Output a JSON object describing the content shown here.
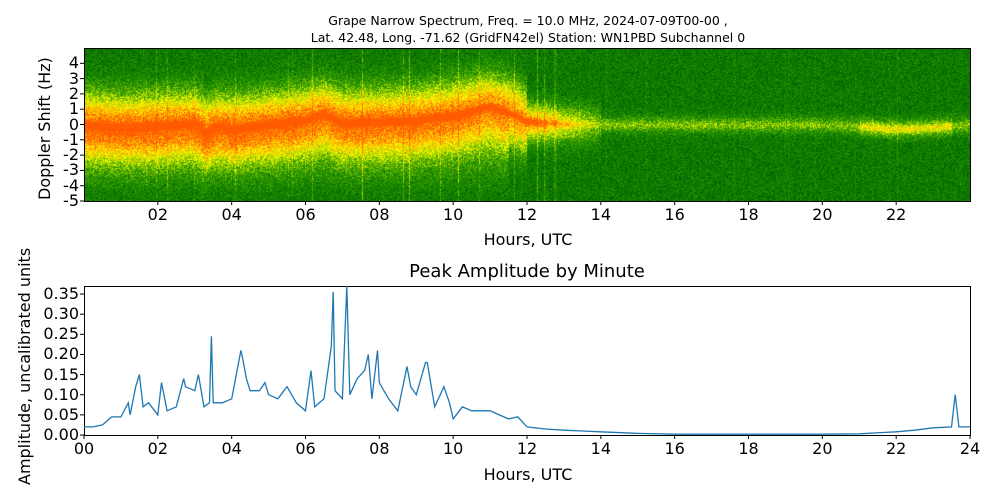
{
  "figure": {
    "title_line1": "Grape Narrow Spectrum, Freq. = 10.0 MHz, 2024-07-09T00-00 ,",
    "title_line2": "Lat.  42.48, Long. -71.62 (GridFN42el) Station: WN1PBD Subchannel 0"
  },
  "chart_data": [
    {
      "type": "heatmap",
      "title": "",
      "xlabel": "Hours, UTC",
      "ylabel": "Doppler Shift (Hz)",
      "xlim": [
        0,
        24
      ],
      "ylim": [
        -5,
        5
      ],
      "xticks": [
        "02",
        "04",
        "06",
        "08",
        "10",
        "12",
        "14",
        "16",
        "18",
        "20",
        "22"
      ],
      "xtick_values": [
        2,
        4,
        6,
        8,
        10,
        12,
        14,
        16,
        18,
        20,
        22
      ],
      "yticks": [
        "4",
        "3",
        "2",
        "1",
        "0",
        "-1",
        "-2",
        "-3",
        "-4",
        "-5"
      ],
      "ytick_values": [
        4,
        3,
        2,
        1,
        0,
        -1,
        -2,
        -3,
        -4,
        -5
      ],
      "colormap": [
        "#006400",
        "#2a9a00",
        "#ffff00",
        "#ff5a00"
      ],
      "peak_doppler_trace": {
        "hours": [
          0,
          1,
          2,
          3,
          3.3,
          3.6,
          4,
          5,
          6,
          6.5,
          7,
          8,
          9,
          10,
          11,
          11.5,
          12,
          13,
          14,
          16,
          18,
          20,
          21,
          22,
          23,
          24
        ],
        "doppler_hz": [
          0,
          -0.2,
          -0.1,
          0.1,
          -0.6,
          -0.1,
          -0.3,
          0,
          0.3,
          0.7,
          0.1,
          0.2,
          0.3,
          0.6,
          1.2,
          0.8,
          0.2,
          0.05,
          0,
          0,
          0,
          0,
          -0.1,
          -0.3,
          -0.2,
          0
        ]
      },
      "grid": false
    },
    {
      "type": "line",
      "title": "Peak Amplitude by Minute",
      "xlabel": "Hours, UTC",
      "ylabel": "Amplitude, uncalibrated units",
      "xlim": [
        0,
        24
      ],
      "ylim": [
        0,
        0.37
      ],
      "xticks": [
        "00",
        "02",
        "04",
        "06",
        "08",
        "10",
        "12",
        "14",
        "16",
        "18",
        "20",
        "22",
        "24"
      ],
      "xtick_values": [
        0,
        2,
        4,
        6,
        8,
        10,
        12,
        14,
        16,
        18,
        20,
        22,
        24
      ],
      "yticks": [
        "0.00",
        "0.05",
        "0.10",
        "0.15",
        "0.20",
        "0.25",
        "0.30",
        "0.35"
      ],
      "ytick_values": [
        0,
        0.05,
        0.1,
        0.15,
        0.2,
        0.25,
        0.3,
        0.35
      ],
      "line_color": "#1f77b4",
      "grid": false,
      "series": [
        {
          "x": [
            0,
            0.25,
            0.5,
            0.75,
            1.0,
            1.2,
            1.25,
            1.4,
            1.5,
            1.6,
            1.75,
            2.0,
            2.1,
            2.25,
            2.5,
            2.7,
            2.75,
            3.0,
            3.1,
            3.25,
            3.4,
            3.45,
            3.5,
            3.75,
            4.0,
            4.25,
            4.3,
            4.4,
            4.5,
            4.75,
            4.9,
            5.0,
            5.25,
            5.5,
            5.75,
            6.0,
            6.15,
            6.25,
            6.5,
            6.7,
            6.75,
            6.8,
            7.0,
            7.12,
            7.2,
            7.4,
            7.6,
            7.7,
            7.8,
            7.95,
            8.0,
            8.25,
            8.5,
            8.75,
            8.85,
            9.0,
            9.25,
            9.3,
            9.5,
            9.75,
            9.9,
            10.0,
            10.25,
            10.5,
            10.75,
            11.0,
            11.25,
            11.5,
            11.75,
            12.0,
            12.5,
            13.0,
            13.5,
            14.0,
            15.0,
            16.0,
            17.0,
            18.0,
            19.0,
            20.0,
            21.0,
            22.0,
            22.5,
            23.0,
            23.5,
            23.6,
            23.7,
            24.0
          ],
          "y": [
            0.02,
            0.02,
            0.025,
            0.045,
            0.045,
            0.08,
            0.05,
            0.12,
            0.15,
            0.07,
            0.08,
            0.05,
            0.13,
            0.06,
            0.07,
            0.14,
            0.12,
            0.11,
            0.15,
            0.07,
            0.08,
            0.245,
            0.08,
            0.08,
            0.09,
            0.21,
            0.19,
            0.14,
            0.11,
            0.11,
            0.13,
            0.1,
            0.09,
            0.12,
            0.08,
            0.06,
            0.16,
            0.07,
            0.09,
            0.22,
            0.355,
            0.11,
            0.09,
            0.37,
            0.1,
            0.14,
            0.16,
            0.2,
            0.09,
            0.21,
            0.13,
            0.09,
            0.06,
            0.17,
            0.12,
            0.1,
            0.18,
            0.18,
            0.07,
            0.12,
            0.08,
            0.04,
            0.07,
            0.06,
            0.06,
            0.06,
            0.05,
            0.04,
            0.045,
            0.02,
            0.015,
            0.012,
            0.01,
            0.008,
            0.004,
            0.002,
            0.002,
            0.002,
            0.002,
            0.002,
            0.003,
            0.008,
            0.012,
            0.018,
            0.02,
            0.1,
            0.02,
            0.02
          ]
        }
      ]
    }
  ]
}
